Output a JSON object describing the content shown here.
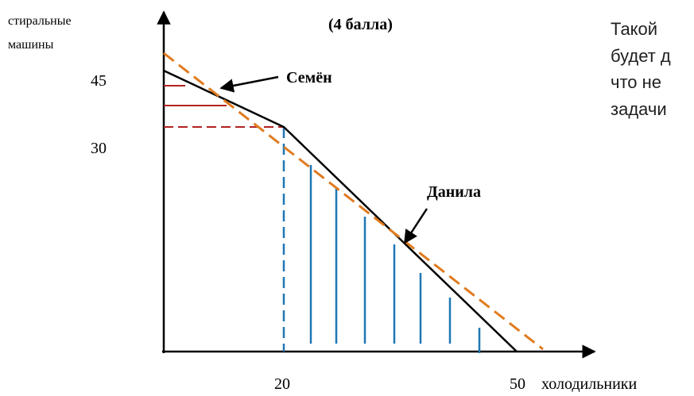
{
  "header": {
    "points_label": "(4 балла)"
  },
  "axes": {
    "y_label_line1": "стиральные",
    "y_label_line2": "машины",
    "x_label": "холодильники",
    "y_ticks": [
      "45",
      "30"
    ],
    "x_ticks": [
      "20",
      "50"
    ]
  },
  "annotations": {
    "semyon": "Семён",
    "danila": "Данила"
  },
  "side_text": {
    "line1": "Такой",
    "line2": "будет д",
    "line3": "что не",
    "line4": "задачи"
  },
  "colors": {
    "ppf": "#000000",
    "combined": "#E07B1F",
    "red_lines": "#B22222",
    "blue_lines": "#1F77B4"
  }
}
